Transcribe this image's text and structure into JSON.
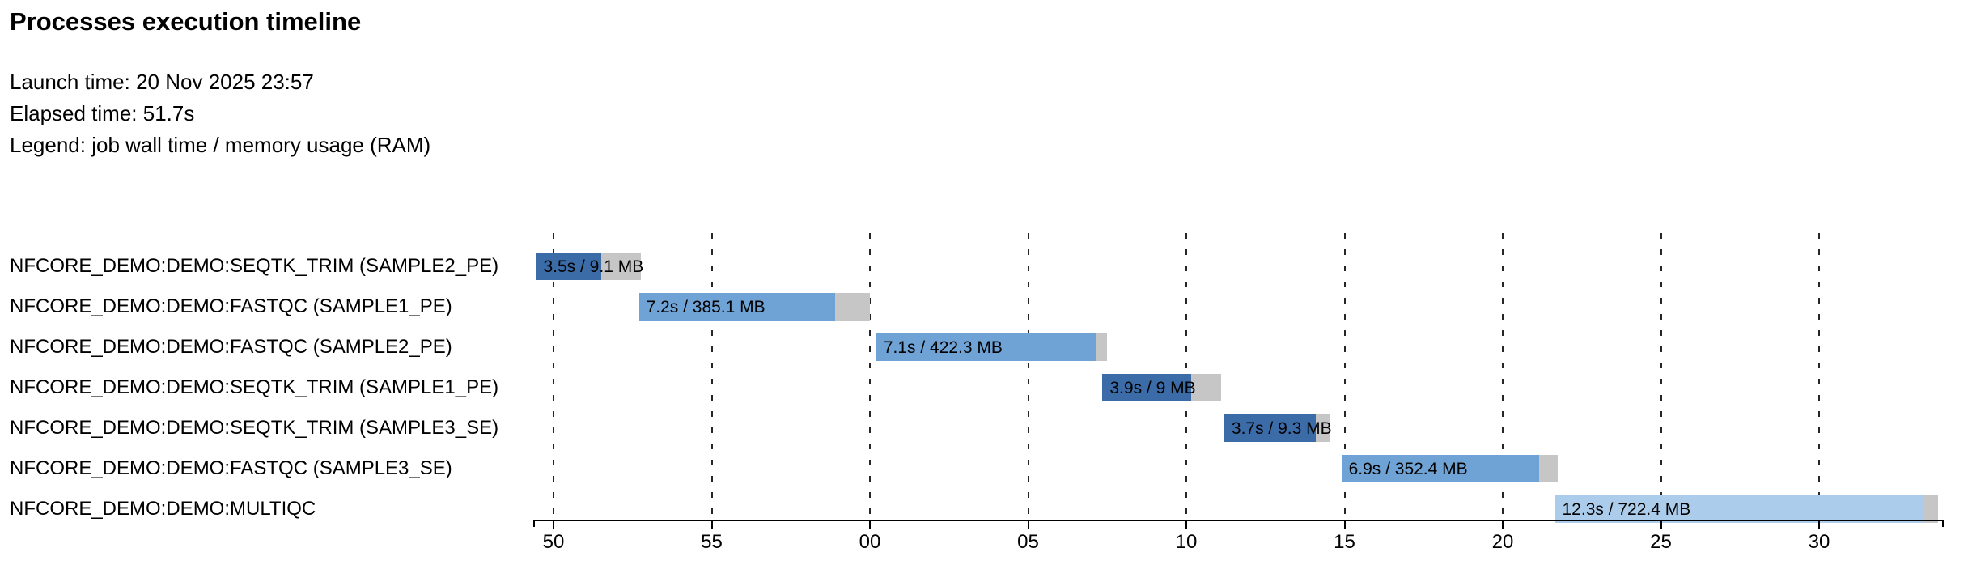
{
  "header": {
    "title": "Processes execution timeline",
    "launch_time": "Launch time: 20 Nov 2025 23:57",
    "elapsed_time": "Elapsed time: 51.7s",
    "legend": "Legend: job wall time / memory usage (RAM)"
  },
  "colors": {
    "seqtk_trim": "#3b6ca8",
    "fastqc": "#6fa3d6",
    "multiqc": "#abccea",
    "tail": "#c6c6c6",
    "axis": "#000000"
  },
  "chart_data": {
    "type": "gantt",
    "title": "Processes execution timeline",
    "x_axis_note": "time of day seconds, ticks every 5s crossing minute boundary 23:57 -> 23:58",
    "grid": "dashed vertical lines at each tick",
    "ticks": [
      {
        "s": 50,
        "label": "50"
      },
      {
        "s": 55,
        "label": "55"
      },
      {
        "s": 60,
        "label": "00"
      },
      {
        "s": 65,
        "label": "05"
      },
      {
        "s": 70,
        "label": "10"
      },
      {
        "s": 75,
        "label": "15"
      },
      {
        "s": 80,
        "label": "20"
      },
      {
        "s": 85,
        "label": "25"
      },
      {
        "s": 90,
        "label": "30"
      }
    ],
    "tasks": [
      {
        "process": "NFCORE_DEMO:DEMO:SEQTK_TRIM (SAMPLE2_PE)",
        "label": "3.5s / 9.1 MB",
        "start_s": 49.45,
        "run_end_s": 51.5,
        "tail_end_s": 52.75,
        "color_key": "seqtk_trim"
      },
      {
        "process": "NFCORE_DEMO:DEMO:FASTQC (SAMPLE1_PE)",
        "label": "7.2s / 385.1 MB",
        "start_s": 52.7,
        "run_end_s": 58.9,
        "tail_end_s": 60.0,
        "color_key": "fastqc"
      },
      {
        "process": "NFCORE_DEMO:DEMO:FASTQC (SAMPLE2_PE)",
        "label": "7.1s / 422.3 MB",
        "start_s": 60.2,
        "run_end_s": 67.15,
        "tail_end_s": 67.5,
        "color_key": "fastqc"
      },
      {
        "process": "NFCORE_DEMO:DEMO:SEQTK_TRIM (SAMPLE1_PE)",
        "label": "3.9s / 9 MB",
        "start_s": 67.35,
        "run_end_s": 70.15,
        "tail_end_s": 71.1,
        "color_key": "seqtk_trim"
      },
      {
        "process": "NFCORE_DEMO:DEMO:SEQTK_TRIM (SAMPLE3_SE)",
        "label": "3.7s / 9.3 MB",
        "start_s": 71.2,
        "run_end_s": 74.1,
        "tail_end_s": 74.55,
        "color_key": "seqtk_trim"
      },
      {
        "process": "NFCORE_DEMO:DEMO:FASTQC (SAMPLE3_SE)",
        "label": "6.9s / 352.4 MB",
        "start_s": 74.9,
        "run_end_s": 81.15,
        "tail_end_s": 81.75,
        "color_key": "fastqc"
      },
      {
        "process": "NFCORE_DEMO:DEMO:MULTIQC",
        "label": "12.3s / 722.4 MB",
        "start_s": 81.65,
        "run_end_s": 93.3,
        "tail_end_s": 93.75,
        "color_key": "multiqc"
      }
    ]
  }
}
